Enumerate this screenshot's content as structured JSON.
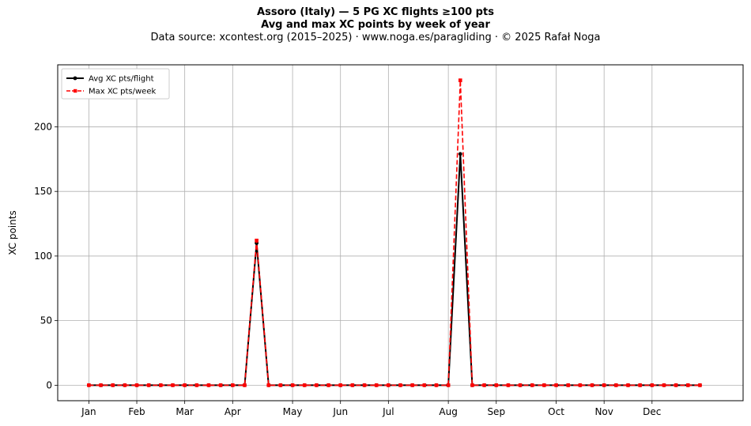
{
  "title": "Assoro (Italy)  —  5 PG XC flights ≥100 pts",
  "subtitle": "Avg and max XC points by week of year",
  "source": "Data source: xcontest.org (2015–2025)  ·  www.noga.es/paragliding  ·  © 2025 Rafał Noga",
  "chart_data": {
    "type": "line",
    "title": "Assoro (Italy)  —  5 PG XC flights ≥100 pts",
    "subtitle": "Avg and max XC points by week of year",
    "xlabel": "",
    "ylabel": "XC points",
    "xlim": [
      -2.6,
      54.6
    ],
    "ylim": [
      -12,
      248
    ],
    "yticks": [
      0,
      50,
      100,
      150,
      200
    ],
    "xticks": [
      {
        "pos": 0,
        "label": "Jan"
      },
      {
        "pos": 4,
        "label": "Feb"
      },
      {
        "pos": 8,
        "label": "Mar"
      },
      {
        "pos": 12,
        "label": "Apr"
      },
      {
        "pos": 17,
        "label": "May"
      },
      {
        "pos": 21,
        "label": "Jun"
      },
      {
        "pos": 25,
        "label": "Jul"
      },
      {
        "pos": 30,
        "label": "Aug"
      },
      {
        "pos": 34,
        "label": "Sep"
      },
      {
        "pos": 39,
        "label": "Oct"
      },
      {
        "pos": 43,
        "label": "Nov"
      },
      {
        "pos": 47,
        "label": "Dec"
      }
    ],
    "grid": true,
    "legend_position": "top-left",
    "x": [
      0,
      1,
      2,
      3,
      4,
      5,
      6,
      7,
      8,
      9,
      10,
      11,
      12,
      13,
      14,
      15,
      16,
      17,
      18,
      19,
      20,
      21,
      22,
      23,
      24,
      25,
      26,
      27,
      28,
      29,
      30,
      31,
      32,
      33,
      34,
      35,
      36,
      37,
      38,
      39,
      40,
      41,
      42,
      43,
      44,
      45,
      46,
      47,
      48,
      49,
      50,
      51
    ],
    "series": [
      {
        "name": "Avg XC pts/flight",
        "color": "#000000",
        "style": "solid-circle",
        "values": [
          0,
          0,
          0,
          0,
          0,
          0,
          0,
          0,
          0,
          0,
          0,
          0,
          0,
          0,
          110,
          0,
          0,
          0,
          0,
          0,
          0,
          0,
          0,
          0,
          0,
          0,
          0,
          0,
          0,
          0,
          0,
          179,
          0,
          0,
          0,
          0,
          0,
          0,
          0,
          0,
          0,
          0,
          0,
          0,
          0,
          0,
          0,
          0,
          0,
          0,
          0,
          0
        ]
      },
      {
        "name": "Max XC pts/week",
        "color": "#ff0000",
        "style": "dashed-square",
        "values": [
          0,
          0,
          0,
          0,
          0,
          0,
          0,
          0,
          0,
          0,
          0,
          0,
          0,
          0,
          112,
          0,
          0,
          0,
          0,
          0,
          0,
          0,
          0,
          0,
          0,
          0,
          0,
          0,
          0,
          0,
          0,
          236,
          0,
          0,
          0,
          0,
          0,
          0,
          0,
          0,
          0,
          0,
          0,
          0,
          0,
          0,
          0,
          0,
          0,
          0,
          0,
          0
        ]
      }
    ]
  }
}
